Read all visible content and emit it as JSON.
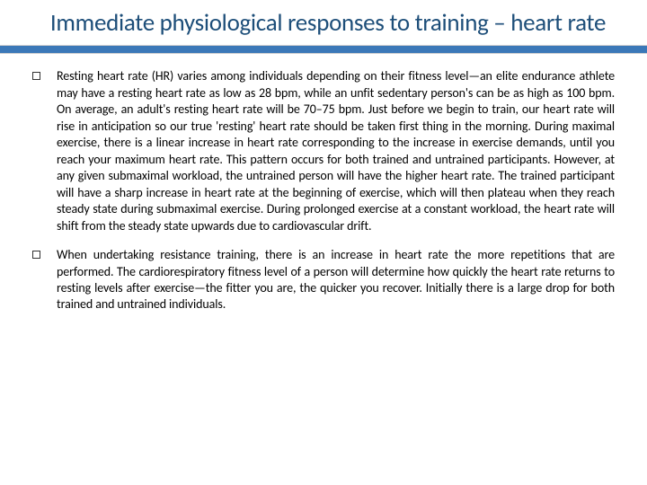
{
  "colors": {
    "title_color": "#1d4e79",
    "accent_bar": "#3b78b8",
    "text_color": "#000000",
    "background": "#ffffff",
    "bullet_border": "#333333"
  },
  "typography": {
    "title_fontsize_pt": 20,
    "body_fontsize_pt": 10.5,
    "font_family": "Calibri"
  },
  "title": "Immediate physiological responses to training – heart rate",
  "bullets": [
    {
      "text": "Resting heart rate (HR) varies among individuals depending on their fitness level—an elite endurance athlete may have a resting heart rate as low as 28 bpm, while an unfit sedentary person's can be as high as 100 bpm. On average, an adult's resting heart rate will be 70–75 bpm. Just before we begin to train, our heart rate will rise in anticipation so our true 'resting' heart rate should be taken first thing in the morning. During maximal exercise, there is a linear increase in heart rate corresponding to the increase in exercise demands, until you reach your maximum heart rate. This pattern occurs for both trained and untrained participants. However, at any given submaximal workload, the untrained person will have the higher heart rate. The trained participant will have a sharp increase in heart rate at the beginning of exercise, which will then plateau when they reach steady state during submaximal exercise. During prolonged exercise at a constant workload, the heart rate will shift from the steady state upwards due to cardiovascular drift."
    },
    {
      "text": "When undertaking resistance training, there is an increase in heart rate the more repetitions that are performed. The cardiorespiratory fitness level of a person will determine how quickly the heart rate returns to resting levels after exercise—the fitter you are, the quicker you recover. Initially there is a large drop for both trained and untrained individuals."
    }
  ]
}
